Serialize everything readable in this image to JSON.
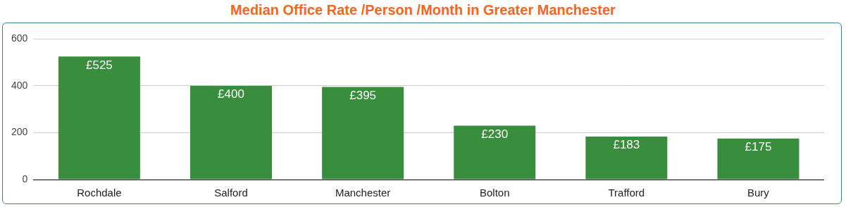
{
  "chart_data": {
    "type": "bar",
    "title": "Median Office Rate /Person /Month in Greater Manchester",
    "categories": [
      "Rochdale",
      "Salford",
      "Manchester",
      "Bolton",
      "Trafford",
      "Bury"
    ],
    "values": [
      525,
      400,
      395,
      230,
      183,
      175
    ],
    "value_labels": [
      "£525",
      "£400",
      "£395",
      "£230",
      "£183",
      "£175"
    ],
    "data_labels": true,
    "color": "#388e3c",
    "ylim": [
      0,
      600
    ],
    "yticks": [
      0,
      200,
      400,
      600
    ],
    "grid": true
  }
}
